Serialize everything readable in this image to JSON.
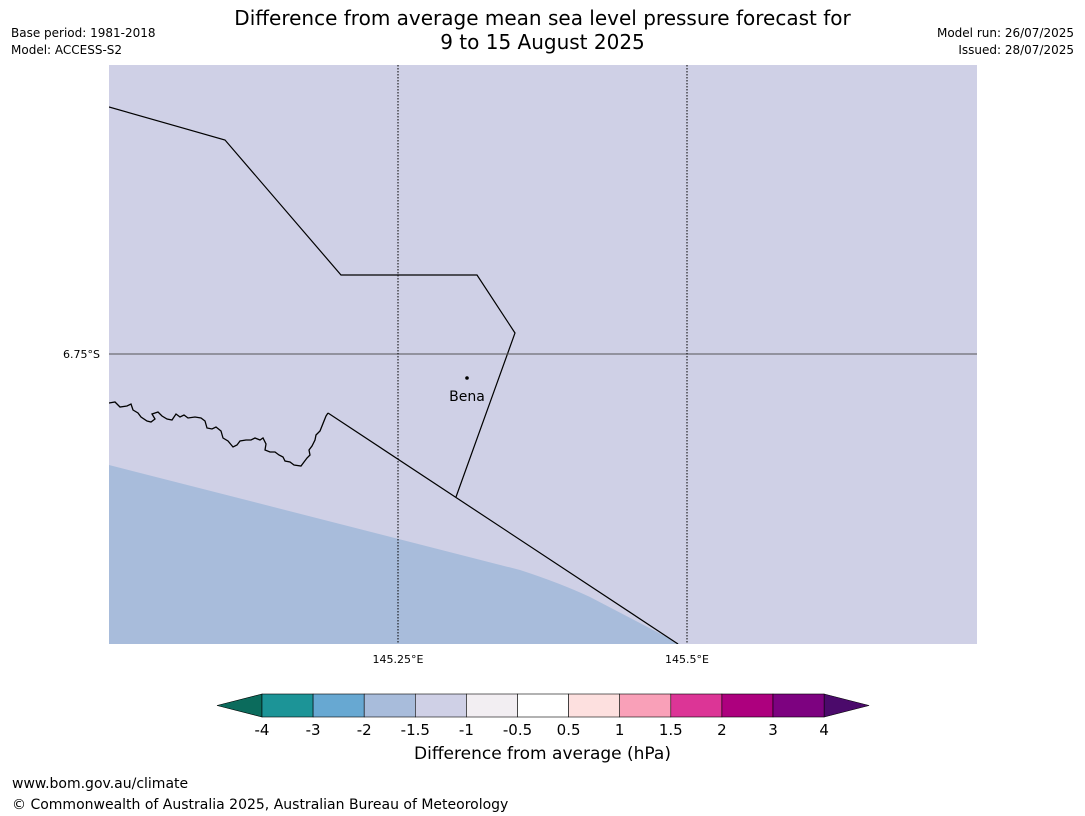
{
  "title": {
    "line1": "Difference from average mean sea level pressure forecast for",
    "line2": "9 to 15 August 2025"
  },
  "meta_left": {
    "base_period": "Base period: 1981-2018",
    "model": "Model: ACCESS-S2"
  },
  "meta_right": {
    "model_run": "Model run: 26/07/2025",
    "issued": "Issued: 28/07/2025"
  },
  "map": {
    "background_color": "#cfd0e6",
    "region_color": "#a8bcdb",
    "lat_labels": [
      {
        "text": "6.75°S",
        "lat": -6.75
      }
    ],
    "lon_labels": [
      {
        "text": "145.25°E",
        "lon": 145.25
      },
      {
        "text": "145.5°E",
        "lon": 145.5
      }
    ],
    "places": [
      {
        "name": "Bena"
      }
    ]
  },
  "colorbar": {
    "title": "Difference from average (hPa)",
    "ticks": [
      "-4",
      "-3",
      "-2",
      "-1.5",
      "-1",
      "-0.5",
      "0.5",
      "1",
      "1.5",
      "2",
      "3",
      "4"
    ],
    "under_color": "#0b6b5c",
    "over_color": "#4b0a6b",
    "colors": [
      "#1c9497",
      "#67a8d2",
      "#a8bcdb",
      "#cfd0e6",
      "#f2eef2",
      "#ffffff",
      "#fde0df",
      "#f9a0b8",
      "#dc3596",
      "#ad007e",
      "#7d0280"
    ]
  },
  "footer": {
    "url": "www.bom.gov.au/climate",
    "copyright": "© Commonwealth of Australia 2025, Australian Bureau of Meteorology"
  }
}
